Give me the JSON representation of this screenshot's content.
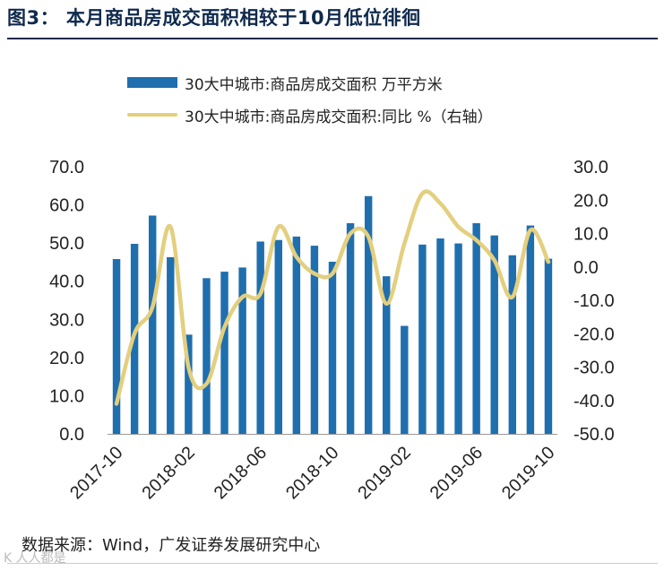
{
  "figure": {
    "title": "图3：  本月商品房成交面积相较于10月低位徘徊",
    "source": "数据来源：Wind，广发证券发展研究中心",
    "watermark": "K  人人都是"
  },
  "legend": {
    "series1": "30大中城市:商品房成交面积 万平方米",
    "series2": "30大中城市:商品房成交面积:同比 %（右轴）"
  },
  "colors": {
    "bar": "#1f6fae",
    "line": "#e3cf7e",
    "title": "#0f2a4d"
  },
  "chart_data": {
    "type": "bar",
    "x": [
      "2017-10",
      "2017-11",
      "2017-12",
      "2018-01",
      "2018-02",
      "2018-03",
      "2018-04",
      "2018-05",
      "2018-06",
      "2018-07",
      "2018-08",
      "2018-09",
      "2018-10",
      "2018-11",
      "2018-12",
      "2019-01",
      "2019-02",
      "2019-03",
      "2019-04",
      "2019-05",
      "2019-06",
      "2019-07",
      "2019-08",
      "2019-09",
      "2019-10"
    ],
    "x_tick_labels": [
      "2017-10",
      "2018-02",
      "2018-06",
      "2018-10",
      "2019-02",
      "2019-06",
      "2019-10"
    ],
    "x_tick_indices": [
      0,
      4,
      8,
      12,
      16,
      20,
      24
    ],
    "y_left": {
      "range": [
        0,
        70
      ],
      "ticks": [
        "0.0",
        "10.0",
        "20.0",
        "30.0",
        "40.0",
        "50.0",
        "60.0",
        "70.0"
      ]
    },
    "y_right": {
      "range": [
        -50,
        30
      ],
      "ticks": [
        "-50.0",
        "-40.0",
        "-30.0",
        "-20.0",
        "-10.0",
        "0.0",
        "10.0",
        "20.0",
        "30.0"
      ]
    },
    "legend_position": "top",
    "grid": false,
    "series": [
      {
        "name": "30大中城市:商品房成交面积 万平方米",
        "type": "bar",
        "axis": "left",
        "values": [
          45.8,
          49.8,
          57.2,
          46.3,
          26.0,
          40.8,
          42.5,
          43.6,
          50.4,
          50.8,
          51.7,
          49.3,
          45.1,
          55.2,
          62.3,
          41.3,
          28.3,
          49.6,
          51.2,
          49.9,
          55.2,
          52.0,
          46.8,
          54.6,
          45.9
        ]
      },
      {
        "name": "30大中城市:商品房成交面积:同比 %（右轴）",
        "type": "line",
        "axis": "right",
        "values": [
          -41.0,
          -20.0,
          -12.0,
          12.0,
          -30.0,
          -35.0,
          -18.0,
          -9.0,
          -8.0,
          12.0,
          3.0,
          -2.0,
          -2.0,
          10.0,
          9.0,
          -11.0,
          7.0,
          22.0,
          19.0,
          12.0,
          8.0,
          2.0,
          -9.0,
          11.0,
          1.5
        ]
      }
    ]
  }
}
